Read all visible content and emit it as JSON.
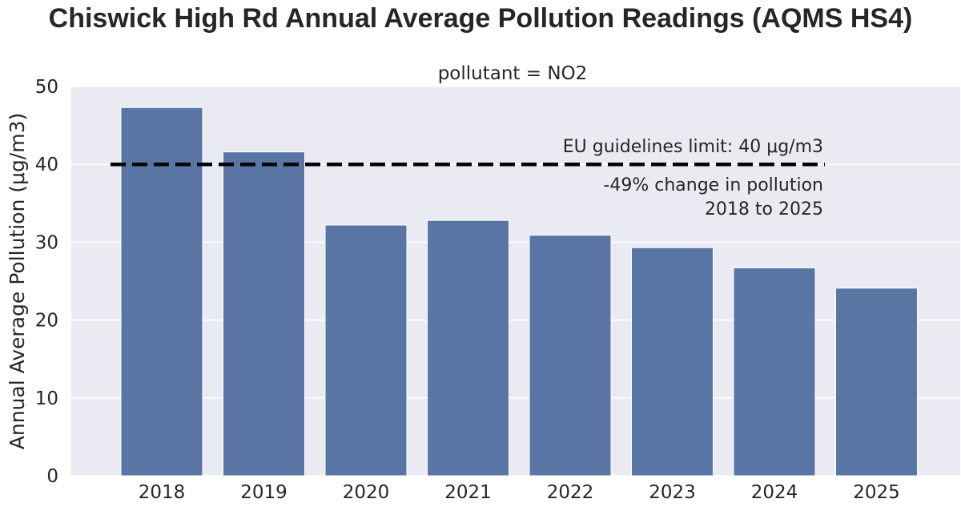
{
  "chart_data": {
    "type": "bar",
    "title": "Chiswick High Rd Annual Average Pollution Readings (AQMS HS4)",
    "subtitle": "pollutant = NO2",
    "xlabel": "",
    "ylabel": "Annual Average Pollution (μg/m3)",
    "categories": [
      "2018",
      "2019",
      "2020",
      "2021",
      "2022",
      "2023",
      "2024",
      "2025"
    ],
    "values": [
      47.3,
      41.6,
      32.2,
      32.8,
      30.9,
      29.3,
      26.7,
      24.1
    ],
    "ylim": [
      0,
      50
    ],
    "yticks": [
      0,
      10,
      20,
      30,
      40,
      50
    ],
    "grid": true,
    "bar_color": "#5975a4",
    "background_color": "#eaeaf2",
    "reference_line": {
      "value": 40,
      "label": "EU guidelines limit: 40 μg/m3",
      "style": "dashed",
      "color": "#000000"
    },
    "annotation_lines": [
      "-49% change in pollution",
      "2018 to 2025"
    ]
  }
}
